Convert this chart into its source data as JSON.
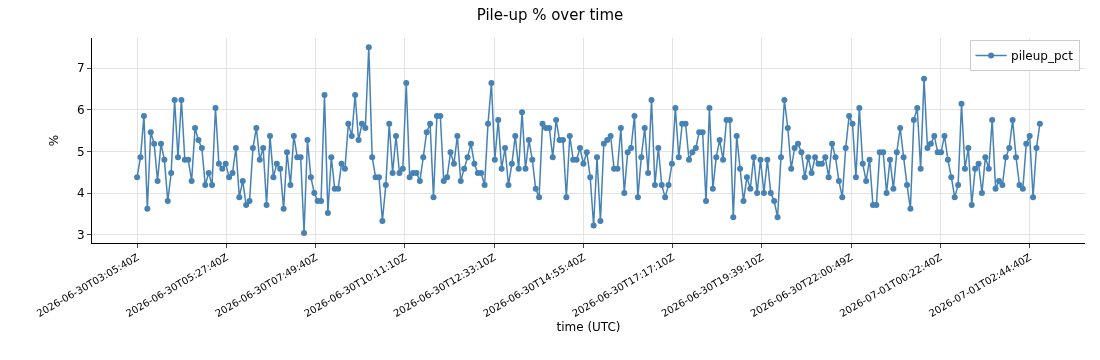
{
  "chart_data": {
    "type": "line",
    "title": "Pile-up % over time",
    "xlabel": "time (UTC)",
    "ylabel": "%",
    "x": [
      "2026-06-30T03:05:40",
      "2026-06-30T03:11:05",
      "2026-06-30T03:16:30",
      "2026-06-30T03:21:55",
      "2026-06-30T03:27:20",
      "2026-06-30T03:32:45",
      "2026-06-30T03:38:10",
      "2026-06-30T03:43:35",
      "2026-06-30T03:49:00",
      "2026-06-30T03:54:25",
      "2026-06-30T03:59:50",
      "2026-06-30T04:05:15",
      "2026-06-30T04:10:40",
      "2026-06-30T04:16:05",
      "2026-06-30T04:21:30",
      "2026-06-30T04:26:55",
      "2026-06-30T04:32:20",
      "2026-06-30T04:37:45",
      "2026-06-30T04:43:10",
      "2026-06-30T04:48:35",
      "2026-06-30T04:54:00",
      "2026-06-30T04:59:25",
      "2026-06-30T05:04:50",
      "2026-06-30T05:10:15",
      "2026-06-30T05:15:40",
      "2026-06-30T05:21:05",
      "2026-06-30T05:26:30",
      "2026-06-30T05:31:55",
      "2026-06-30T05:37:20",
      "2026-06-30T05:42:45",
      "2026-06-30T05:48:10",
      "2026-06-30T05:53:35",
      "2026-06-30T05:59:00",
      "2026-06-30T06:04:25",
      "2026-06-30T06:09:50",
      "2026-06-30T06:15:15",
      "2026-06-30T06:20:40",
      "2026-06-30T06:26:05",
      "2026-06-30T06:31:30",
      "2026-06-30T06:36:55",
      "2026-06-30T06:42:20",
      "2026-06-30T06:47:45",
      "2026-06-30T06:53:10",
      "2026-06-30T06:58:35",
      "2026-06-30T07:04:00",
      "2026-06-30T07:09:25",
      "2026-06-30T07:14:50",
      "2026-06-30T07:20:15",
      "2026-06-30T07:25:40",
      "2026-06-30T07:31:05",
      "2026-06-30T07:36:30",
      "2026-06-30T07:41:55",
      "2026-06-30T07:47:20",
      "2026-06-30T07:52:45",
      "2026-06-30T07:58:10",
      "2026-06-30T08:03:35",
      "2026-06-30T08:09:00",
      "2026-06-30T08:14:25",
      "2026-06-30T08:19:50",
      "2026-06-30T08:25:15",
      "2026-06-30T08:30:40",
      "2026-06-30T08:36:05",
      "2026-06-30T08:41:30",
      "2026-06-30T08:46:55",
      "2026-06-30T08:52:20",
      "2026-06-30T08:57:45",
      "2026-06-30T09:03:10",
      "2026-06-30T09:08:35",
      "2026-06-30T09:14:00",
      "2026-06-30T09:19:25",
      "2026-06-30T09:24:50",
      "2026-06-30T09:30:15",
      "2026-06-30T09:35:40",
      "2026-06-30T09:41:05",
      "2026-06-30T09:46:30",
      "2026-06-30T09:51:55",
      "2026-06-30T09:57:20",
      "2026-06-30T10:02:45",
      "2026-06-30T10:08:10",
      "2026-06-30T10:13:35",
      "2026-06-30T10:19:00",
      "2026-06-30T10:24:25",
      "2026-06-30T10:29:50",
      "2026-06-30T10:35:15",
      "2026-06-30T10:40:40",
      "2026-06-30T10:46:05",
      "2026-06-30T10:51:30",
      "2026-06-30T10:56:55",
      "2026-06-30T11:02:20",
      "2026-06-30T11:07:45",
      "2026-06-30T11:13:10",
      "2026-06-30T11:18:35",
      "2026-06-30T11:24:00",
      "2026-06-30T11:29:25",
      "2026-06-30T11:34:50",
      "2026-06-30T11:40:15",
      "2026-06-30T11:45:40",
      "2026-06-30T11:51:05",
      "2026-06-30T11:56:30",
      "2026-06-30T12:01:55",
      "2026-06-30T12:07:20",
      "2026-06-30T12:12:45",
      "2026-06-30T12:18:10",
      "2026-06-30T12:23:35",
      "2026-06-30T12:29:00",
      "2026-06-30T12:34:25",
      "2026-06-30T12:39:50",
      "2026-06-30T12:45:15",
      "2026-06-30T12:50:40",
      "2026-06-30T12:56:05",
      "2026-06-30T13:01:30",
      "2026-06-30T13:06:55",
      "2026-06-30T13:12:20",
      "2026-06-30T13:17:45",
      "2026-06-30T13:23:10",
      "2026-06-30T13:28:35",
      "2026-06-30T13:34:00",
      "2026-06-30T13:39:25",
      "2026-06-30T13:44:50",
      "2026-06-30T13:50:15",
      "2026-06-30T13:55:40",
      "2026-06-30T14:01:05",
      "2026-06-30T14:06:30",
      "2026-06-30T14:11:55",
      "2026-06-30T14:17:20",
      "2026-06-30T14:22:45",
      "2026-06-30T14:28:10",
      "2026-06-30T14:33:35",
      "2026-06-30T14:39:00",
      "2026-06-30T14:44:25",
      "2026-06-30T14:49:50",
      "2026-06-30T14:55:15",
      "2026-06-30T15:00:40",
      "2026-06-30T15:06:05",
      "2026-06-30T15:11:30",
      "2026-06-30T15:16:55",
      "2026-06-30T15:22:20",
      "2026-06-30T15:27:45",
      "2026-06-30T15:33:10",
      "2026-06-30T15:38:35",
      "2026-06-30T15:44:00",
      "2026-06-30T15:49:25",
      "2026-06-30T15:54:50",
      "2026-06-30T16:00:15",
      "2026-06-30T16:05:40",
      "2026-06-30T16:11:05",
      "2026-06-30T16:16:30",
      "2026-06-30T16:21:55",
      "2026-06-30T16:27:20",
      "2026-06-30T16:32:45",
      "2026-06-30T16:38:10",
      "2026-06-30T16:43:35",
      "2026-06-30T16:49:00",
      "2026-06-30T16:54:25",
      "2026-06-30T16:59:50",
      "2026-06-30T17:05:15",
      "2026-06-30T17:10:40",
      "2026-06-30T17:16:05",
      "2026-06-30T17:21:30",
      "2026-06-30T17:26:55",
      "2026-06-30T17:32:20",
      "2026-06-30T17:37:45",
      "2026-06-30T17:43:10",
      "2026-06-30T17:48:35",
      "2026-06-30T17:54:00",
      "2026-06-30T17:59:25",
      "2026-06-30T18:04:50",
      "2026-06-30T18:10:15",
      "2026-06-30T18:15:40",
      "2026-06-30T18:21:05",
      "2026-06-30T18:26:30",
      "2026-06-30T18:31:55",
      "2026-06-30T18:37:20",
      "2026-06-30T18:42:45",
      "2026-06-30T18:48:10",
      "2026-06-30T18:53:35",
      "2026-06-30T18:59:00",
      "2026-06-30T19:04:25",
      "2026-06-30T19:09:50",
      "2026-06-30T19:15:15",
      "2026-06-30T19:20:40",
      "2026-06-30T19:26:05",
      "2026-06-30T19:31:30",
      "2026-06-30T19:36:55",
      "2026-06-30T19:42:20",
      "2026-06-30T19:47:45",
      "2026-06-30T19:53:10",
      "2026-06-30T19:58:35",
      "2026-06-30T20:04:00",
      "2026-06-30T20:09:25",
      "2026-06-30T20:14:50",
      "2026-06-30T20:20:15",
      "2026-06-30T20:25:40",
      "2026-06-30T20:31:05",
      "2026-06-30T20:36:30",
      "2026-06-30T20:41:55",
      "2026-06-30T20:47:20",
      "2026-06-30T20:52:45",
      "2026-06-30T20:58:10",
      "2026-06-30T21:03:35",
      "2026-06-30T21:09:00",
      "2026-06-30T21:14:25",
      "2026-06-30T21:19:50",
      "2026-06-30T21:25:15",
      "2026-06-30T21:30:40",
      "2026-06-30T21:36:05",
      "2026-06-30T21:41:30",
      "2026-06-30T21:46:55",
      "2026-06-30T21:52:20",
      "2026-06-30T21:57:45",
      "2026-06-30T22:03:10",
      "2026-06-30T22:08:35",
      "2026-06-30T22:14:00",
      "2026-06-30T22:19:25",
      "2026-06-30T22:24:50",
      "2026-06-30T22:30:15",
      "2026-06-30T22:35:40",
      "2026-06-30T22:41:05",
      "2026-06-30T22:46:30",
      "2026-06-30T22:51:55",
      "2026-06-30T22:57:20",
      "2026-06-30T23:02:45",
      "2026-06-30T23:08:10",
      "2026-06-30T23:13:35",
      "2026-06-30T23:19:00",
      "2026-06-30T23:24:25",
      "2026-06-30T23:29:50",
      "2026-06-30T23:35:15",
      "2026-06-30T23:40:40",
      "2026-06-30T23:46:05",
      "2026-06-30T23:51:30",
      "2026-06-30T23:56:55",
      "2026-07-01T00:02:20",
      "2026-07-01T00:07:45",
      "2026-07-01T00:13:10",
      "2026-07-01T00:18:35",
      "2026-07-01T00:24:00",
      "2026-07-01T00:29:25",
      "2026-07-01T00:34:50",
      "2026-07-01T00:40:15",
      "2026-07-01T00:45:40",
      "2026-07-01T00:51:05",
      "2026-07-01T00:56:30",
      "2026-07-01T01:01:55",
      "2026-07-01T01:07:20",
      "2026-07-01T01:12:45",
      "2026-07-01T01:18:10",
      "2026-07-01T01:23:35",
      "2026-07-01T01:29:00",
      "2026-07-01T01:34:25",
      "2026-07-01T01:39:50",
      "2026-07-01T01:45:15",
      "2026-07-01T01:50:40",
      "2026-07-01T01:56:05",
      "2026-07-01T02:01:30",
      "2026-07-01T02:06:55",
      "2026-07-01T02:12:20",
      "2026-07-01T02:17:45",
      "2026-07-01T02:23:10",
      "2026-07-01T02:28:35",
      "2026-07-01T02:34:00",
      "2026-07-01T02:39:25",
      "2026-07-01T02:44:50",
      "2026-07-01T02:50:15",
      "2026-07-01T02:55:40",
      "2026-07-01T03:01:05"
    ],
    "series": [
      {
        "name": "pileup_pct",
        "color": "#4682b4",
        "values": [
          4.38,
          4.86,
          5.85,
          3.62,
          5.46,
          5.18,
          4.29,
          5.18,
          4.8,
          3.81,
          4.48,
          6.23,
          4.86,
          6.23,
          4.8,
          4.8,
          4.29,
          5.56,
          5.27,
          5.08,
          4.19,
          4.48,
          4.19,
          6.04,
          4.7,
          4.58,
          4.7,
          4.38,
          4.48,
          5.08,
          3.9,
          4.29,
          3.71,
          3.81,
          5.08,
          5.56,
          4.8,
          5.08,
          3.71,
          5.37,
          4.38,
          4.7,
          4.58,
          3.62,
          4.98,
          4.19,
          5.37,
          4.86,
          4.86,
          3.04,
          5.27,
          4.38,
          4.0,
          3.81,
          3.81,
          6.35,
          3.52,
          4.86,
          4.1,
          4.1,
          4.7,
          4.58,
          5.66,
          5.37,
          6.35,
          5.27,
          5.66,
          5.56,
          7.5,
          4.86,
          4.38,
          4.38,
          3.33,
          4.19,
          5.66,
          4.48,
          5.37,
          4.48,
          4.58,
          6.64,
          4.38,
          4.48,
          4.48,
          4.29,
          4.86,
          5.46,
          5.66,
          3.9,
          5.85,
          5.85,
          4.29,
          4.38,
          4.98,
          4.7,
          5.37,
          4.29,
          4.58,
          4.86,
          5.18,
          4.7,
          4.48,
          4.48,
          4.19,
          5.66,
          6.64,
          4.8,
          5.75,
          4.58,
          5.08,
          4.19,
          4.7,
          5.37,
          4.58,
          5.94,
          4.58,
          5.27,
          4.8,
          4.1,
          3.9,
          5.66,
          5.56,
          5.56,
          4.86,
          5.75,
          5.27,
          5.27,
          3.9,
          5.37,
          4.8,
          4.8,
          5.08,
          4.7,
          4.98,
          4.38,
          3.22,
          4.86,
          3.33,
          5.18,
          5.27,
          5.37,
          4.58,
          4.58,
          5.56,
          4.0,
          4.98,
          5.08,
          5.85,
          3.9,
          4.86,
          5.56,
          4.48,
          6.23,
          4.19,
          5.08,
          4.19,
          3.9,
          4.19,
          4.7,
          6.04,
          4.86,
          5.66,
          5.66,
          4.8,
          4.98,
          5.08,
          5.46,
          5.46,
          3.81,
          6.04,
          4.1,
          4.86,
          5.27,
          4.8,
          5.75,
          5.75,
          3.42,
          5.37,
          4.58,
          3.81,
          4.38,
          4.1,
          4.86,
          4.0,
          4.8,
          4.0,
          4.8,
          4.0,
          3.81,
          3.42,
          4.86,
          6.23,
          5.56,
          4.58,
          5.08,
          5.18,
          4.98,
          4.38,
          4.86,
          4.48,
          4.86,
          4.7,
          4.7,
          4.86,
          4.38,
          5.18,
          4.86,
          4.29,
          3.9,
          5.08,
          5.85,
          5.66,
          4.38,
          6.04,
          4.7,
          4.29,
          4.8,
          3.71,
          3.71,
          4.98,
          4.98,
          4.0,
          4.8,
          4.1,
          4.98,
          5.56,
          4.86,
          4.19,
          3.62,
          5.75,
          6.04,
          4.58,
          6.74,
          5.08,
          5.18,
          5.37,
          4.98,
          4.98,
          5.37,
          4.8,
          4.38,
          3.9,
          4.19,
          6.14,
          4.58,
          5.08,
          3.71,
          4.58,
          4.7,
          4.0,
          4.86,
          4.58,
          5.75,
          4.1,
          4.29,
          4.19,
          4.86,
          5.08,
          5.75,
          4.86,
          4.19,
          4.1,
          5.18,
          5.37,
          3.9,
          5.08,
          5.66
        ]
      }
    ],
    "xlim": [
      "2026-06-30T01:53:55",
      "2026-07-01T04:12:50"
    ],
    "xticks": [
      {
        "value": "2026-06-30T03:05:40",
        "label": "2026-06-30T03:05:40Z"
      },
      {
        "value": "2026-06-30T05:27:40",
        "label": "2026-06-30T05:27:40Z"
      },
      {
        "value": "2026-06-30T07:49:40",
        "label": "2026-06-30T07:49:40Z"
      },
      {
        "value": "2026-06-30T10:11:10",
        "label": "2026-06-30T10:11:10Z"
      },
      {
        "value": "2026-06-30T12:33:10",
        "label": "2026-06-30T12:33:10Z"
      },
      {
        "value": "2026-06-30T14:55:40",
        "label": "2026-06-30T14:55:40Z"
      },
      {
        "value": "2026-06-30T17:17:10",
        "label": "2026-06-30T17:17:10Z"
      },
      {
        "value": "2026-06-30T19:39:10",
        "label": "2026-06-30T19:39:10Z"
      },
      {
        "value": "2026-06-30T22:00:49",
        "label": "2026-06-30T22:00:49Z"
      },
      {
        "value": "2026-07-01T00:22:40",
        "label": "2026-07-01T00:22:40Z"
      },
      {
        "value": "2026-07-01T02:44:40",
        "label": "2026-07-01T02:44:40Z"
      }
    ],
    "ylim": [
      2.8,
      7.72
    ],
    "yticks": [
      3,
      4,
      5,
      6,
      7
    ],
    "grid": true,
    "legend": "top right",
    "marker": "circle",
    "line_style": "solid"
  }
}
